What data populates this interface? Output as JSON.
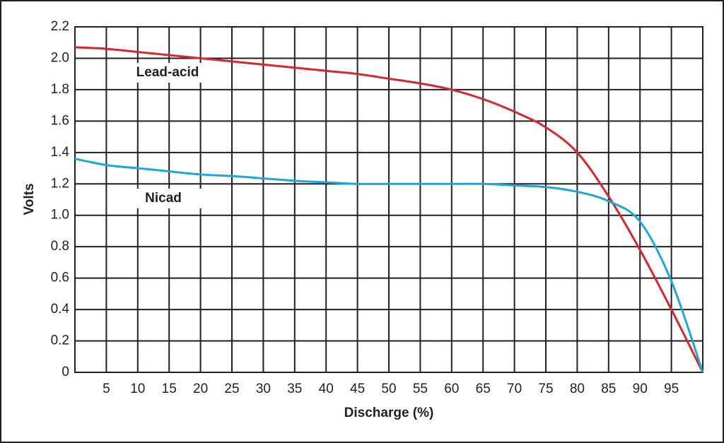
{
  "chart_data": {
    "type": "line",
    "x_label": "Discharge (%)",
    "y_label": "Volts",
    "x": [
      0,
      5,
      10,
      15,
      20,
      25,
      30,
      35,
      40,
      45,
      50,
      55,
      60,
      65,
      70,
      75,
      80,
      85,
      90,
      95,
      100
    ],
    "series": [
      {
        "name": "Lead-acid",
        "color": "#d9262c",
        "values": [
          2.07,
          2.06,
          2.04,
          2.02,
          2.0,
          1.98,
          1.96,
          1.94,
          1.92,
          1.9,
          1.87,
          1.84,
          1.8,
          1.74,
          1.66,
          1.56,
          1.4,
          1.12,
          0.78,
          0.4,
          0
        ]
      },
      {
        "name": "Nicad",
        "color": "#1ba7de",
        "values": [
          1.36,
          1.32,
          1.3,
          1.28,
          1.26,
          1.25,
          1.235,
          1.22,
          1.21,
          1.2,
          1.2,
          1.2,
          1.2,
          1.2,
          1.19,
          1.18,
          1.15,
          1.09,
          0.96,
          0.58,
          0
        ]
      }
    ],
    "xlim": [
      0,
      100
    ],
    "xticks": [
      5,
      10,
      15,
      20,
      25,
      30,
      35,
      40,
      45,
      50,
      55,
      60,
      65,
      70,
      75,
      80,
      85,
      90,
      95
    ],
    "ylim": [
      0,
      2.2
    ],
    "yticks": [
      0,
      0.2,
      0.4,
      0.6,
      0.8,
      {
        "value": 1,
        "label": "1.0"
      },
      1.2,
      1.4,
      1.6,
      1.8,
      {
        "value": 2,
        "label": "2.0"
      },
      2.2
    ],
    "grid": true
  }
}
